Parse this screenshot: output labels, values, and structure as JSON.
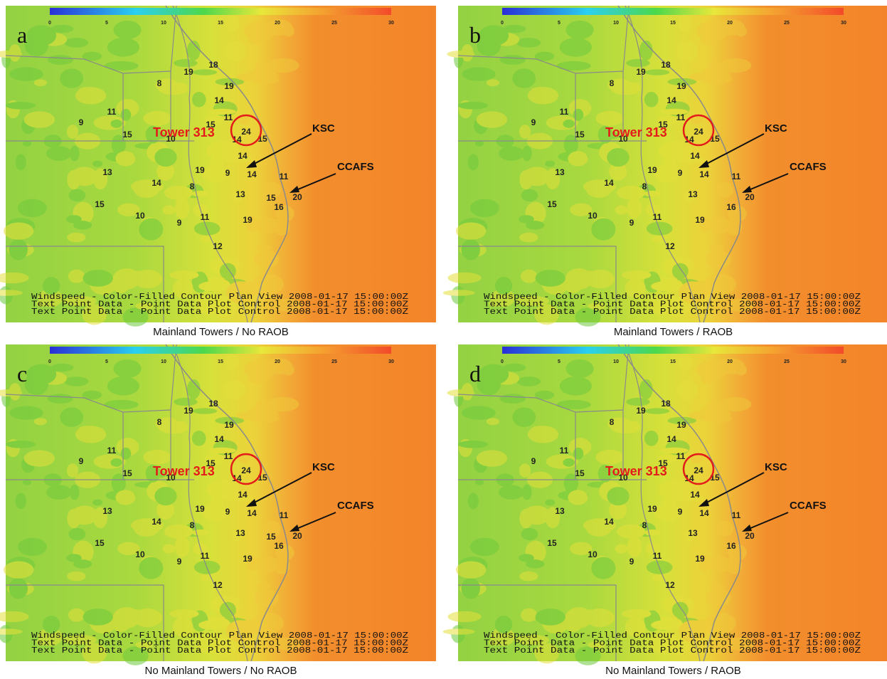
{
  "colorbar_ticks": [
    0,
    5,
    10,
    15,
    20,
    25,
    30
  ],
  "annotations": {
    "tower": "Tower 313",
    "ksc": "KSC",
    "ccafs": "CCAFS"
  },
  "footer_lines": [
    "Windspeed - Color-Filled Contour Plan View 2008-01-17 15:00:00Z",
    "Text Point Data - Point Data Plot Control 2008-01-17 15:00:00Z",
    "Text Point Data - Point Data Plot Control 2008-01-17 15:00:00Z"
  ],
  "panels": [
    {
      "letter": "a",
      "caption": "Mainland Towers / No RAOB",
      "stations": [
        18,
        19,
        19,
        8,
        14,
        11,
        11,
        15,
        9,
        15,
        24,
        14,
        15,
        10,
        14,
        19,
        9,
        14,
        13,
        14,
        8,
        11,
        13,
        15,
        20,
        16,
        15,
        10,
        9,
        11,
        19,
        12
      ]
    },
    {
      "letter": "b",
      "caption": "Mainland Towers / RAOB",
      "stations": [
        18,
        19,
        19,
        8,
        14,
        11,
        11,
        15,
        9,
        15,
        24,
        14,
        15,
        10,
        14,
        19,
        9,
        14,
        13,
        14,
        8,
        11,
        13,
        20,
        16,
        15,
        10,
        9,
        11,
        19,
        12
      ]
    },
    {
      "letter": "c",
      "caption": "No Mainland Towers / No RAOB",
      "stations": [
        18,
        19,
        19,
        8,
        14,
        11,
        11,
        15,
        9,
        15,
        24,
        14,
        15,
        10,
        14,
        19,
        9,
        14,
        13,
        14,
        8,
        11,
        13,
        15,
        20,
        16,
        15,
        10,
        9,
        11,
        19,
        12
      ]
    },
    {
      "letter": "d",
      "caption": "No Mainland Towers / RAOB",
      "stations": [
        18,
        19,
        19,
        8,
        14,
        11,
        11,
        15,
        9,
        15,
        24,
        14,
        15,
        10,
        14,
        19,
        9,
        14,
        13,
        14,
        8,
        11,
        13,
        20,
        16,
        15,
        10,
        9,
        11,
        19,
        12
      ]
    }
  ]
}
